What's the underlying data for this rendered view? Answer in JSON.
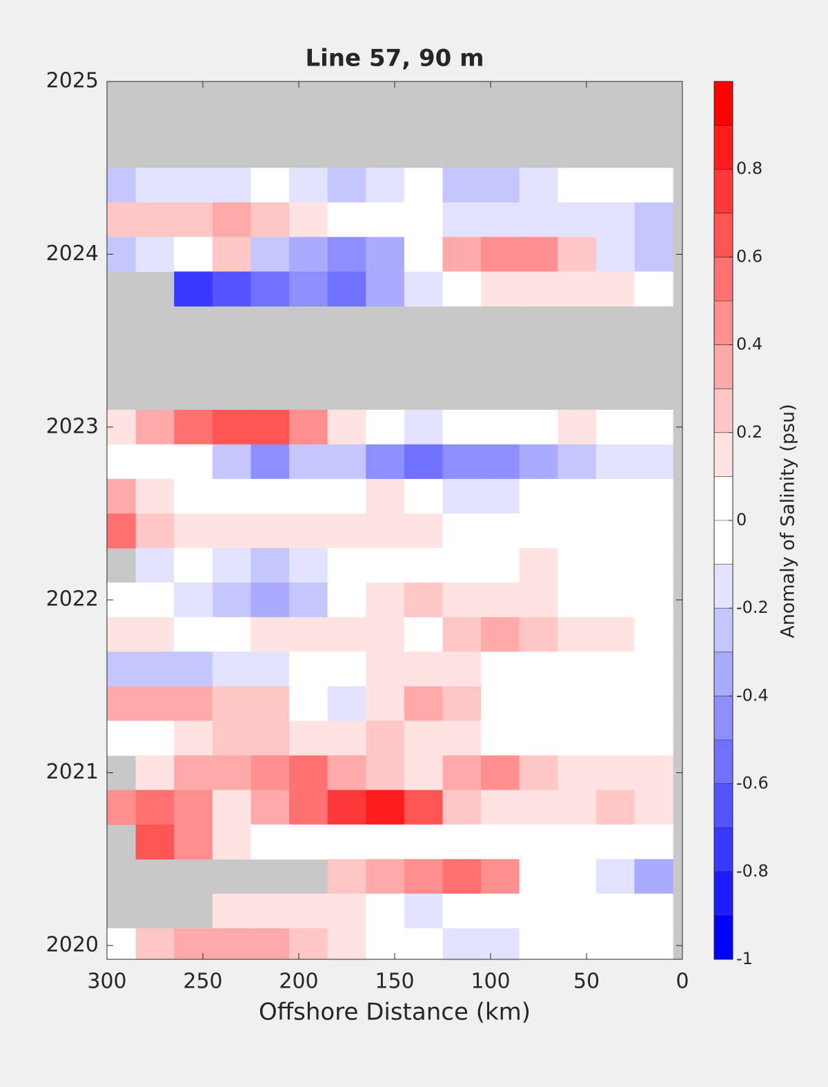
{
  "chart_data": {
    "type": "contour",
    "title": "Line 57, 90 m",
    "xlabel": "Offshore Distance (km)",
    "colorbar_label": "Anomaly of Salinity (psu)",
    "xlim": [
      300,
      0
    ],
    "xticks": [
      300,
      250,
      200,
      150,
      100,
      50,
      0
    ],
    "ylim": [
      2019.92,
      2025
    ],
    "yticks": [
      2020,
      2021,
      2022,
      2023,
      2024,
      2025
    ],
    "clim": [
      -1,
      1
    ],
    "cticks": [
      -1,
      -0.8,
      -0.6,
      -0.4,
      -0.2,
      0,
      0.2,
      0.4,
      0.6,
      0.8
    ],
    "missing_color": "#c8c8c8",
    "levels": [
      -1,
      -0.9,
      -0.8,
      -0.7,
      -0.6,
      -0.5,
      -0.4,
      -0.3,
      -0.2,
      -0.1,
      0,
      0.1,
      0.2,
      0.3,
      0.4,
      0.5,
      0.6,
      0.7,
      0.8,
      0.9,
      1
    ],
    "colors": [
      "#0000ff",
      "#1c1cff",
      "#3939ff",
      "#5555ff",
      "#7171ff",
      "#8e8eff",
      "#aaaaff",
      "#c6c6ff",
      "#e3e3ff",
      "#ffffff",
      "#ffffff",
      "#ffe3e3",
      "#ffc6c6",
      "#ffaaaa",
      "#ff8e8e",
      "#ff7171",
      "#ff5555",
      "#ff3939",
      "#ff1c1c",
      "#ff0000"
    ],
    "x": [
      295,
      275,
      255,
      235,
      215,
      195,
      175,
      155,
      135,
      115,
      95,
      75,
      55,
      35,
      15
    ],
    "y": [
      2024.4,
      2024.2,
      2024.0,
      2023.8,
      2023.6,
      2023.4,
      2023.2,
      2023.0,
      2022.8,
      2022.6,
      2022.4,
      2022.2,
      2022.0,
      2021.8,
      2021.6,
      2021.4,
      2021.2,
      2021.0,
      2020.8,
      2020.6,
      2020.4,
      2020.2,
      2020.0
    ],
    "z": [
      [
        -0.3,
        -0.2,
        -0.2,
        -0.2,
        -0.1,
        -0.2,
        -0.3,
        -0.2,
        -0.1,
        -0.3,
        -0.3,
        -0.2,
        -0.1,
        -0.1,
        -0.1
      ],
      [
        0.2,
        0.2,
        0.2,
        0.3,
        0.2,
        0.1,
        0,
        0,
        -0.1,
        -0.2,
        -0.2,
        -0.2,
        -0.2,
        -0.2,
        -0.3
      ],
      [
        -0.3,
        -0.2,
        -0.1,
        0.2,
        -0.3,
        -0.4,
        -0.5,
        -0.4,
        -0.1,
        0.3,
        0.4,
        0.4,
        0.2,
        -0.2,
        -0.3
      ],
      [
        null,
        null,
        -0.8,
        -0.7,
        -0.6,
        -0.5,
        -0.6,
        -0.4,
        -0.2,
        0,
        0.1,
        0.1,
        0.1,
        0.1,
        -0.1
      ],
      [
        null,
        null,
        null,
        null,
        null,
        null,
        null,
        null,
        null,
        null,
        null,
        null,
        null,
        null,
        null
      ],
      [
        null,
        null,
        null,
        null,
        null,
        null,
        null,
        null,
        null,
        null,
        null,
        null,
        null,
        null,
        null
      ],
      [
        null,
        null,
        null,
        null,
        null,
        null,
        null,
        null,
        null,
        null,
        null,
        null,
        null,
        null,
        null
      ],
      [
        0.1,
        0.3,
        0.5,
        0.6,
        0.6,
        0.4,
        0.1,
        -0.1,
        -0.2,
        -0.1,
        0,
        0,
        0.1,
        0,
        0
      ],
      [
        0,
        -0.1,
        0,
        -0.3,
        -0.5,
        -0.3,
        -0.3,
        -0.5,
        -0.6,
        -0.5,
        -0.5,
        -0.4,
        -0.3,
        -0.2,
        -0.2
      ],
      [
        0.3,
        0.1,
        0,
        0,
        -0.1,
        -0.1,
        0,
        0.1,
        0,
        -0.2,
        -0.2,
        0,
        0,
        0,
        0
      ],
      [
        0.5,
        0.2,
        0.1,
        0.1,
        0.1,
        0.1,
        0.1,
        0.1,
        0.1,
        0,
        0,
        0,
        0,
        0,
        0
      ],
      [
        null,
        -0.2,
        -0.1,
        -0.2,
        -0.3,
        -0.2,
        -0.1,
        0,
        0,
        0,
        0,
        0.1,
        0,
        0,
        0
      ],
      [
        0,
        -0.1,
        -0.2,
        -0.3,
        -0.4,
        -0.3,
        -0.1,
        0.1,
        0.2,
        0.1,
        0.1,
        0.1,
        0,
        0,
        0
      ],
      [
        0.1,
        0.1,
        0,
        -0.1,
        0.1,
        0.1,
        0.1,
        0.1,
        0,
        0.2,
        0.3,
        0.2,
        0.1,
        0.1,
        0
      ],
      [
        -0.3,
        -0.3,
        -0.3,
        -0.2,
        -0.2,
        -0.1,
        0,
        0.1,
        0.1,
        0.1,
        0,
        0,
        0,
        0,
        0
      ],
      [
        0.3,
        0.3,
        0.3,
        0.2,
        0.2,
        0,
        -0.2,
        0.1,
        0.3,
        0.2,
        0,
        0,
        0,
        0,
        0
      ],
      [
        0,
        0,
        0.1,
        0.2,
        0.2,
        0.1,
        0.1,
        0.2,
        0.1,
        0.1,
        0,
        0,
        0,
        0,
        0
      ],
      [
        null,
        0.1,
        0.3,
        0.3,
        0.4,
        0.5,
        0.3,
        0.2,
        0.1,
        0.3,
        0.4,
        0.2,
        0.1,
        0.1,
        0.1
      ],
      [
        0.4,
        0.5,
        0.4,
        0.1,
        0.3,
        0.5,
        0.7,
        0.8,
        0.6,
        0.2,
        0.1,
        0.1,
        0.1,
        0.2,
        0.1
      ],
      [
        null,
        0.6,
        0.4,
        0.1,
        0,
        -0.1,
        0,
        0,
        0,
        0,
        -0.1,
        -0.1,
        -0.1,
        0,
        0
      ],
      [
        null,
        null,
        null,
        null,
        null,
        null,
        0.2,
        0.3,
        0.4,
        0.5,
        0.4,
        0,
        -0.1,
        -0.2,
        -0.4
      ],
      [
        null,
        null,
        null,
        0.1,
        0.1,
        0.1,
        0.1,
        -0.1,
        -0.2,
        -0.1,
        0,
        0,
        0,
        -0.1,
        -0.1
      ],
      [
        0,
        0.2,
        0.3,
        0.3,
        0.3,
        0.2,
        0.1,
        0,
        -0.1,
        -0.2,
        -0.2,
        0,
        0,
        -0.1,
        0
      ]
    ]
  }
}
